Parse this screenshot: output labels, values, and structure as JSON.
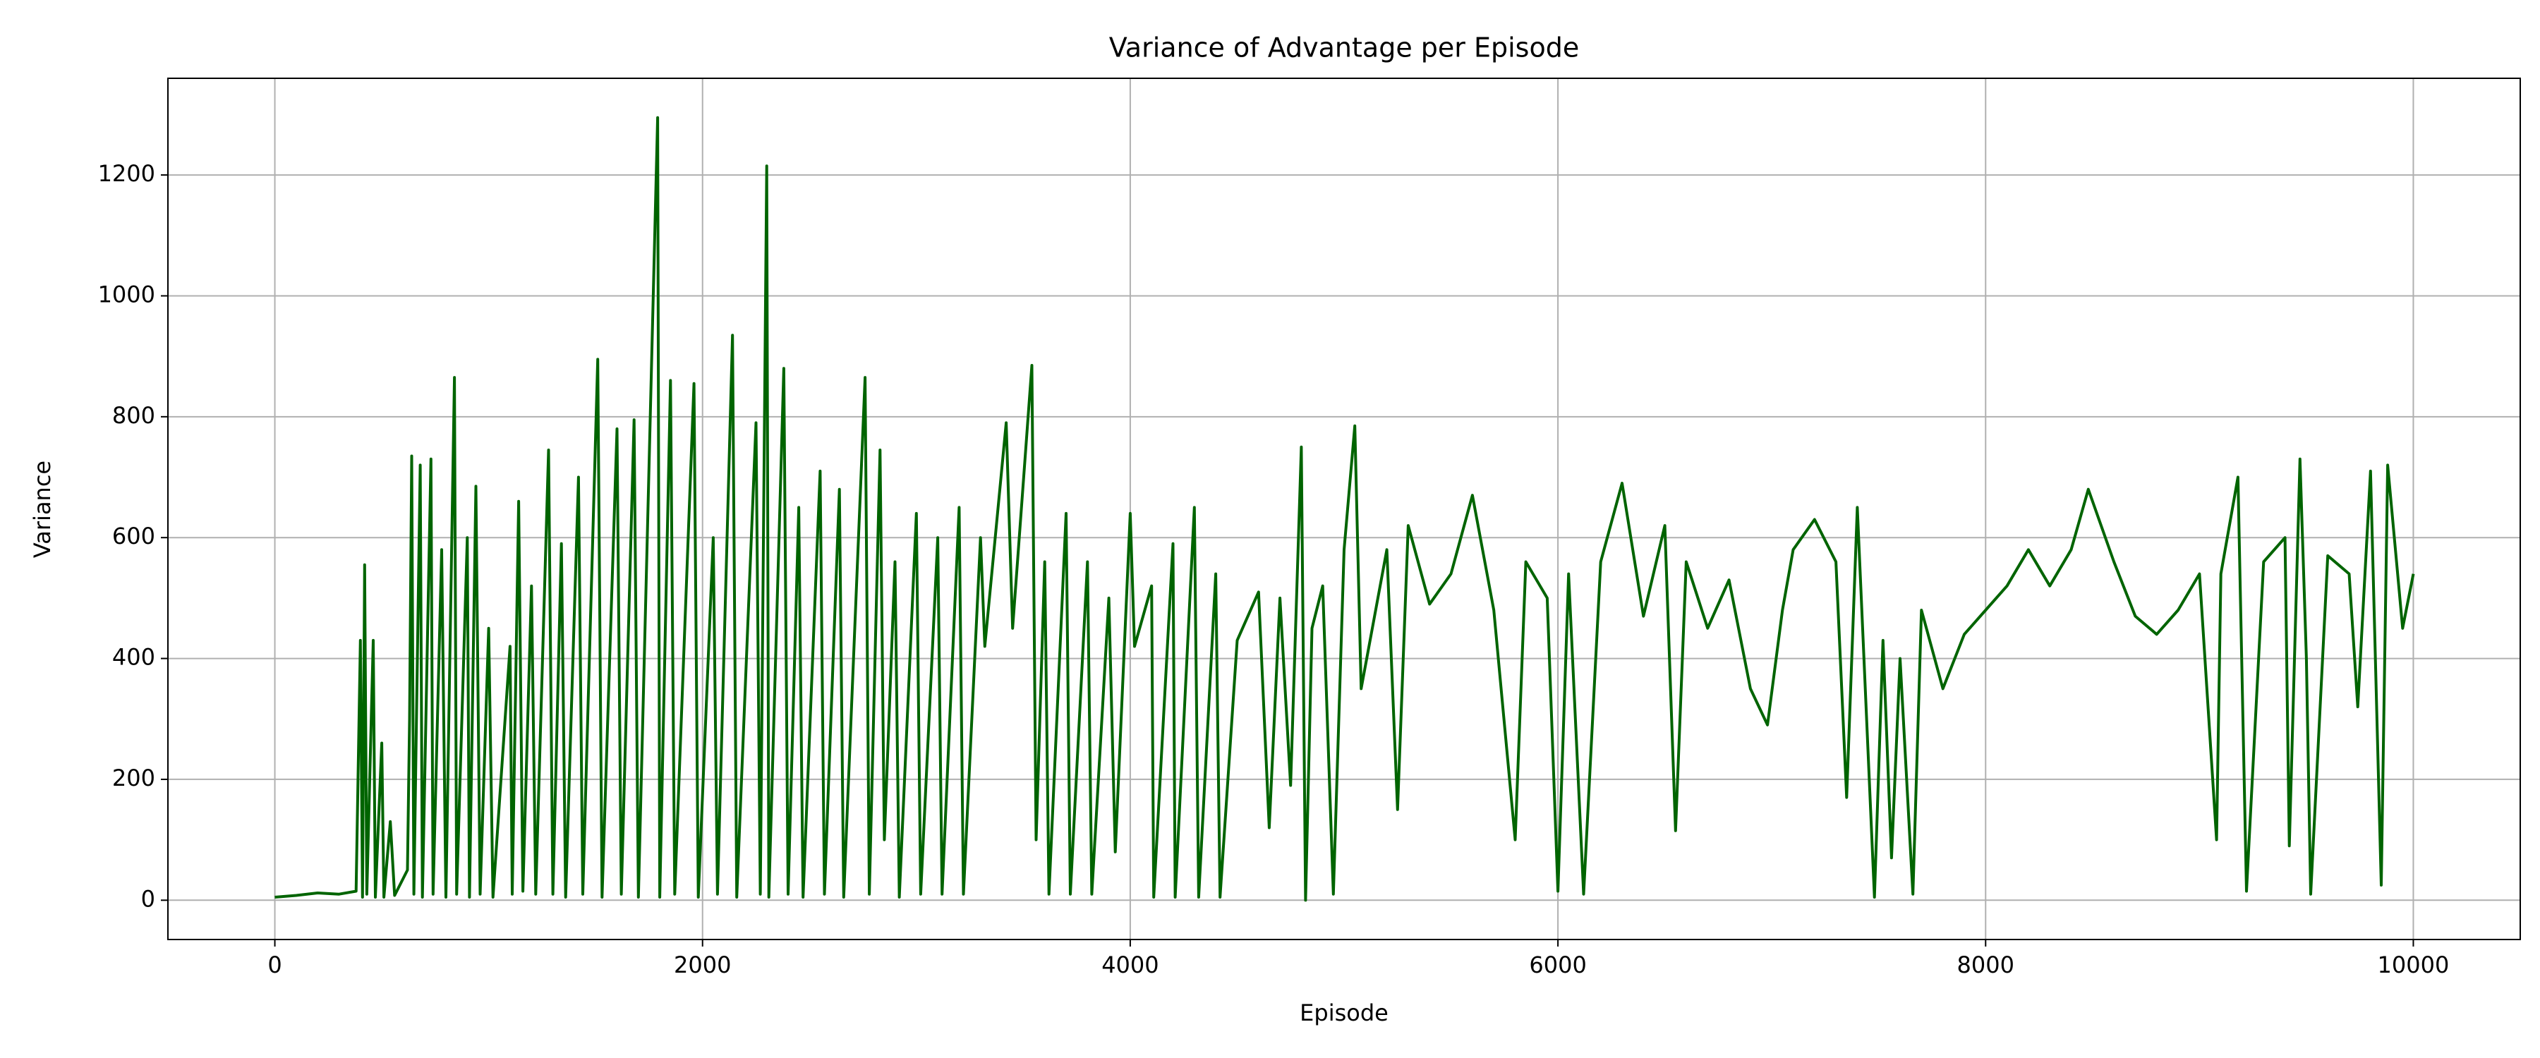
{
  "chart_data": {
    "type": "line",
    "title": "Variance of Advantage per Episode",
    "x_label": "Episode",
    "y_label": "Variance",
    "x": [
      0,
      100,
      200,
      300,
      380,
      400,
      410,
      420,
      430,
      460,
      470,
      500,
      510,
      540,
      560,
      620,
      630,
      640,
      650,
      680,
      690,
      730,
      740,
      780,
      800,
      840,
      850,
      900,
      910,
      940,
      960,
      1000,
      1020,
      1100,
      1110,
      1140,
      1160,
      1200,
      1220,
      1280,
      1300,
      1340,
      1360,
      1420,
      1440,
      1510,
      1530,
      1600,
      1620,
      1680,
      1700,
      1790,
      1800,
      1850,
      1870,
      1960,
      1980,
      2050,
      2070,
      2140,
      2160,
      2250,
      2270,
      2300,
      2310,
      2380,
      2400,
      2450,
      2470,
      2550,
      2570,
      2640,
      2660,
      2760,
      2780,
      2830,
      2850,
      2900,
      2920,
      3000,
      3020,
      3100,
      3120,
      3200,
      3220,
      3300,
      3320,
      3420,
      3450,
      3540,
      3560,
      3600,
      3620,
      3700,
      3720,
      3800,
      3820,
      3900,
      3930,
      4000,
      4020,
      4100,
      4110,
      4200,
      4210,
      4300,
      4320,
      4400,
      4420,
      4500,
      4600,
      4650,
      4700,
      4750,
      4800,
      4820,
      4850,
      4900,
      4950,
      5000,
      5050,
      5080,
      5200,
      5250,
      5300,
      5400,
      5500,
      5600,
      5700,
      5800,
      5850,
      5950,
      6000,
      6050,
      6120,
      6200,
      6300,
      6400,
      6500,
      6550,
      6600,
      6700,
      6800,
      6900,
      6980,
      7050,
      7100,
      7200,
      7300,
      7350,
      7400,
      7480,
      7520,
      7560,
      7600,
      7660,
      7700,
      7800,
      7900,
      8000,
      8100,
      8200,
      8300,
      8400,
      8480,
      8600,
      8700,
      8800,
      8900,
      9000,
      9080,
      9100,
      9180,
      9220,
      9300,
      9400,
      9420,
      9470,
      9500,
      9520,
      9600,
      9700,
      9740,
      9800,
      9850,
      9880,
      9950,
      10000
    ],
    "series": [
      {
        "name": "Variance",
        "color": "#006400",
        "values": [
          5,
          8,
          12,
          10,
          15,
          430,
          5,
          555,
          10,
          430,
          5,
          260,
          5,
          130,
          8,
          50,
          300,
          735,
          10,
          720,
          5,
          730,
          10,
          580,
          5,
          865,
          10,
          600,
          5,
          685,
          10,
          450,
          5,
          420,
          10,
          660,
          15,
          520,
          10,
          745,
          10,
          590,
          5,
          700,
          10,
          895,
          5,
          780,
          10,
          795,
          5,
          1295,
          5,
          860,
          10,
          855,
          5,
          600,
          10,
          935,
          5,
          790,
          10,
          1215,
          5,
          880,
          10,
          650,
          5,
          710,
          10,
          680,
          5,
          865,
          10,
          745,
          100,
          560,
          5,
          640,
          10,
          600,
          10,
          650,
          10,
          600,
          420,
          790,
          450,
          885,
          100,
          560,
          10,
          640,
          10,
          560,
          10,
          500,
          80,
          640,
          420,
          520,
          5,
          590,
          5,
          650,
          5,
          540,
          5,
          430,
          510,
          120,
          500,
          190,
          750,
          0,
          450,
          520,
          10,
          580,
          785,
          350,
          580,
          150,
          620,
          490,
          540,
          670,
          480,
          100,
          560,
          500,
          15,
          540,
          10,
          560,
          690,
          470,
          620,
          115,
          560,
          450,
          530,
          350,
          290,
          480,
          580,
          630,
          560,
          170,
          650,
          5,
          430,
          70,
          400,
          10,
          480,
          350,
          440,
          480,
          520,
          580,
          520,
          580,
          680,
          560,
          470,
          440,
          480,
          540,
          100,
          540,
          700,
          15,
          560,
          600,
          90,
          730,
          400,
          10,
          570,
          540,
          320,
          710,
          25,
          720,
          450,
          540
        ]
      }
    ],
    "xlim": [
      -500,
      10500
    ],
    "ylim": [
      -65,
      1360
    ],
    "xticks": [
      0,
      2000,
      4000,
      6000,
      8000,
      10000
    ],
    "yticks": [
      0,
      200,
      400,
      600,
      800,
      1000,
      1200
    ],
    "grid": true
  }
}
